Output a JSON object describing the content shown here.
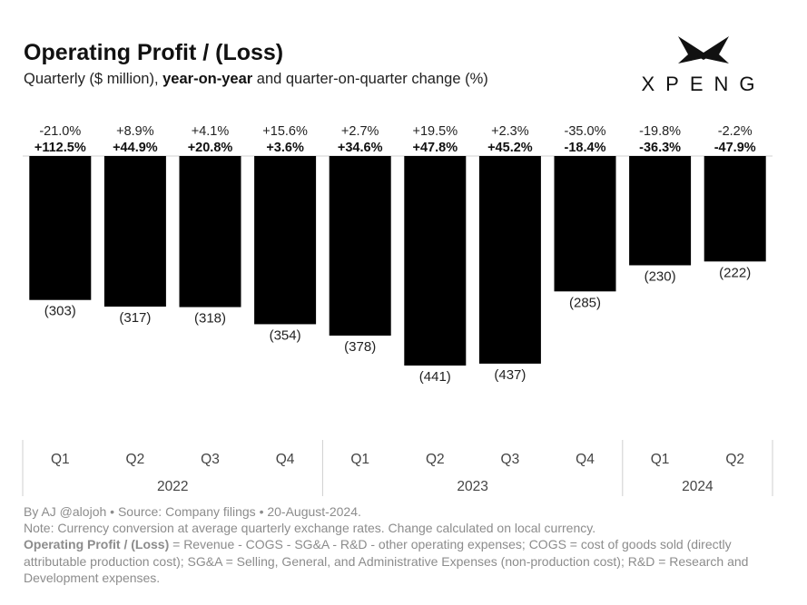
{
  "title": "Operating Profit / (Loss)",
  "subtitle": {
    "prefix": "Quarterly ($ million), ",
    "bold": "year-on-year",
    "suffix": " and quarter-on-quarter change (%)"
  },
  "logo": {
    "text": "XPENG",
    "icon": "xpeng-wing-logo"
  },
  "chart_data": {
    "type": "bar",
    "categories": [
      "Q1",
      "Q2",
      "Q3",
      "Q4",
      "Q1",
      "Q2",
      "Q3",
      "Q4",
      "Q1",
      "Q2"
    ],
    "groups": [
      {
        "label": "2022",
        "count": 4
      },
      {
        "label": "2023",
        "count": 4
      },
      {
        "label": "2024",
        "count": 2
      }
    ],
    "values": [
      -303,
      -317,
      -318,
      -354,
      -378,
      -441,
      -437,
      -285,
      -230,
      -222
    ],
    "value_labels": [
      "(303)",
      "(317)",
      "(318)",
      "(354)",
      "(378)",
      "(441)",
      "(437)",
      "(285)",
      "(230)",
      "(222)"
    ],
    "qoq_labels": [
      "-21.0%",
      "+8.9%",
      "+4.1%",
      "+15.6%",
      "+2.7%",
      "+19.5%",
      "+2.3%",
      "-35.0%",
      "-19.8%",
      "-2.2%"
    ],
    "yoy_labels": [
      "+112.5%",
      "+44.9%",
      "+20.8%",
      "+3.6%",
      "+34.6%",
      "+47.8%",
      "+45.2%",
      "-18.4%",
      "-36.3%",
      "-47.9%"
    ],
    "ylim": [
      -441,
      0
    ],
    "bar_color": "#000000",
    "grid": false,
    "title": "Operating Profit / (Loss)",
    "xlabel": "",
    "ylabel": ""
  },
  "footer": {
    "line1": "By AJ @alojoh • Source: Company filings • 20-August-2024.",
    "line2": "Note: Currency conversion at average quarterly exchange rates. Change calculated on local currency.",
    "definition_term": "Operating Profit / (Loss)",
    "definition_text": " = Revenue - COGS - SG&A - R&D - other operating expenses; COGS = cost of goods sold (directly attributable production cost); SG&A = Selling, General, and Administrative Expenses (non-production cost); R&D = Research and Development expenses."
  }
}
